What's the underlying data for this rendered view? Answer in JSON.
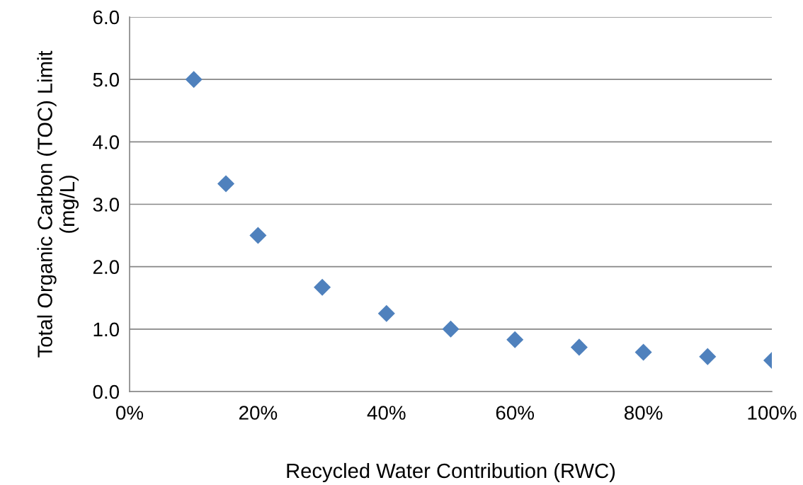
{
  "chart_data": {
    "type": "scatter",
    "xlabel": "Recycled Water Contribution (RWC)",
    "ylabel": "Total Organic Carbon (TOC) Limit\n(mg/L)",
    "x": [
      10,
      15,
      20,
      30,
      40,
      50,
      60,
      70,
      80,
      90,
      100
    ],
    "series": [
      {
        "color": "#4f81bd",
        "values": [
          5.0,
          3.33,
          2.5,
          1.67,
          1.25,
          1.0,
          0.83,
          0.71,
          0.63,
          0.56,
          0.5
        ]
      }
    ],
    "marker": "diamond",
    "grid": "y",
    "xlim": [
      0,
      100
    ],
    "xticks": [
      {
        "value": 0,
        "label": "0%"
      },
      {
        "value": 20,
        "label": "20%"
      },
      {
        "value": 40,
        "label": "40%"
      },
      {
        "value": 60,
        "label": "60%"
      },
      {
        "value": 80,
        "label": "80%"
      },
      {
        "value": 100,
        "label": "100%"
      }
    ],
    "ylim": [
      0,
      6
    ],
    "yticks": [
      {
        "value": 0,
        "label": "0.0"
      },
      {
        "value": 1,
        "label": "1.0"
      },
      {
        "value": 2,
        "label": "2.0"
      },
      {
        "value": 3,
        "label": "3.0"
      },
      {
        "value": 4,
        "label": "4.0"
      },
      {
        "value": 5,
        "label": "5.0"
      },
      {
        "value": 6,
        "label": "6.0"
      }
    ]
  }
}
